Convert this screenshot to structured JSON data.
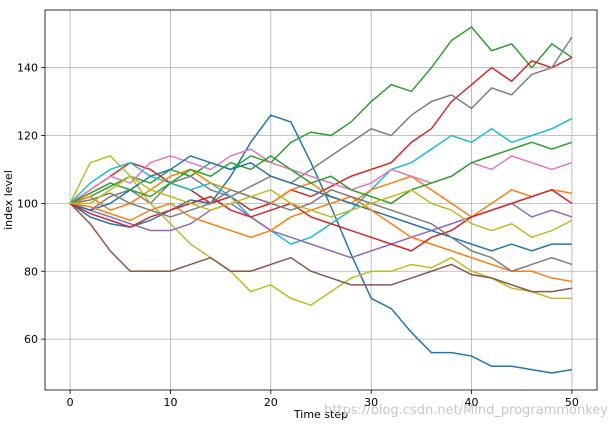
{
  "chart_data": {
    "type": "line",
    "xlabel": "Time step",
    "ylabel": "index level",
    "watermark": "https://blog.csdn.net/Mind_programmonkey",
    "x": [
      0,
      2,
      4,
      6,
      8,
      10,
      12,
      14,
      16,
      18,
      20,
      22,
      24,
      26,
      28,
      30,
      32,
      34,
      36,
      38,
      40,
      42,
      44,
      46,
      48,
      50
    ],
    "xlim": [
      -2.5,
      52.5
    ],
    "xticks": [
      0,
      10,
      20,
      30,
      40,
      50
    ],
    "ylim": [
      45,
      157
    ],
    "yticks": [
      60,
      80,
      100,
      120,
      140
    ],
    "grid": true,
    "series": [
      {
        "color": "#1f77b4",
        "values": [
          100,
          96,
          94,
          93,
          95,
          98,
          101,
          100,
          108,
          118,
          126,
          124,
          112,
          99,
          85,
          72,
          69,
          62,
          56,
          56,
          55,
          52,
          52,
          51,
          50,
          51
        ]
      },
      {
        "color": "#2ca02c",
        "values": [
          100,
          102,
          105,
          108,
          106,
          110,
          108,
          112,
          110,
          114,
          112,
          118,
          121,
          120,
          124,
          130,
          135,
          133,
          140,
          148,
          152,
          145,
          147,
          140,
          147,
          143
        ]
      },
      {
        "color": "#d62728",
        "values": [
          100,
          104,
          108,
          112,
          110,
          106,
          104,
          100,
          102,
          98,
          100,
          104,
          102,
          105,
          108,
          110,
          112,
          118,
          122,
          130,
          135,
          140,
          136,
          142,
          140,
          143
        ]
      },
      {
        "color": "#7f7f7f",
        "values": [
          100,
          98,
          102,
          104,
          100,
          106,
          108,
          104,
          102,
          105,
          108,
          106,
          110,
          114,
          118,
          122,
          120,
          126,
          130,
          132,
          128,
          134,
          132,
          138,
          140,
          149
        ]
      },
      {
        "color": "#bcbd22",
        "values": [
          100,
          112,
          114,
          108,
          100,
          94,
          88,
          84,
          80,
          74,
          76,
          72,
          70,
          74,
          78,
          80,
          80,
          82,
          81,
          84,
          80,
          78,
          75,
          74,
          72,
          72
        ]
      },
      {
        "color": "#8c564b",
        "values": [
          100,
          94,
          86,
          80,
          80,
          80,
          82,
          84,
          80,
          80,
          82,
          84,
          80,
          78,
          76,
          76,
          76,
          78,
          80,
          82,
          79,
          78,
          76,
          74,
          74,
          75
        ]
      },
      {
        "color": "#17becf",
        "values": [
          100,
          106,
          110,
          112,
          108,
          106,
          104,
          106,
          102,
          96,
          92,
          88,
          90,
          94,
          98,
          104,
          110,
          112,
          116,
          120,
          118,
          122,
          118,
          120,
          122,
          125
        ]
      },
      {
        "color": "#ff7f0e",
        "values": [
          100,
          102,
          98,
          100,
          104,
          108,
          110,
          106,
          104,
          102,
          100,
          104,
          106,
          102,
          100,
          104,
          106,
          108,
          104,
          100,
          96,
          100,
          104,
          102,
          104,
          103
        ]
      },
      {
        "color": "#9467bd",
        "values": [
          100,
          98,
          96,
          94,
          92,
          92,
          94,
          98,
          100,
          96,
          92,
          90,
          88,
          86,
          84,
          86,
          88,
          90,
          92,
          94,
          96,
          98,
          100,
          96,
          98,
          96
        ]
      },
      {
        "color": "#e377c2",
        "values": [
          100,
          104,
          108,
          106,
          112,
          114,
          112,
          110,
          114,
          116,
          112,
          110,
          108,
          106,
          104,
          106,
          110,
          108,
          106,
          108,
          112,
          110,
          114,
          112,
          110,
          112
        ]
      },
      {
        "color": "#1f77b4",
        "values": [
          100,
          98,
          100,
          104,
          108,
          110,
          114,
          112,
          110,
          112,
          108,
          106,
          104,
          102,
          100,
          98,
          96,
          94,
          92,
          90,
          88,
          86,
          88,
          86,
          88,
          88
        ]
      },
      {
        "color": "#ff7f0e",
        "values": [
          100,
          99,
          97,
          95,
          98,
          100,
          96,
          94,
          92,
          90,
          92,
          96,
          98,
          100,
          102,
          98,
          94,
          90,
          88,
          86,
          84,
          82,
          80,
          80,
          78,
          77
        ]
      },
      {
        "color": "#2ca02c",
        "values": [
          100,
          103,
          106,
          104,
          102,
          106,
          110,
          108,
          112,
          110,
          114,
          110,
          106,
          108,
          104,
          102,
          100,
          104,
          106,
          108,
          112,
          114,
          116,
          118,
          116,
          118
        ]
      },
      {
        "color": "#d62728",
        "values": [
          100,
          97,
          95,
          93,
          96,
          98,
          100,
          102,
          98,
          96,
          98,
          100,
          96,
          94,
          92,
          90,
          88,
          86,
          90,
          92,
          96,
          98,
          100,
          102,
          104,
          100
        ]
      },
      {
        "color": "#7f7f7f",
        "values": [
          100,
          101,
          103,
          100,
          98,
          96,
          98,
          100,
          104,
          102,
          100,
          98,
          100,
          104,
          102,
          100,
          98,
          96,
          94,
          90,
          86,
          84,
          80,
          82,
          84,
          82
        ]
      },
      {
        "color": "#bcbd22",
        "values": [
          100,
          100,
          104,
          108,
          104,
          102,
          100,
          98,
          100,
          102,
          104,
          100,
          98,
          96,
          98,
          100,
          102,
          104,
          100,
          98,
          94,
          92,
          94,
          90,
          92,
          95
        ]
      }
    ]
  }
}
